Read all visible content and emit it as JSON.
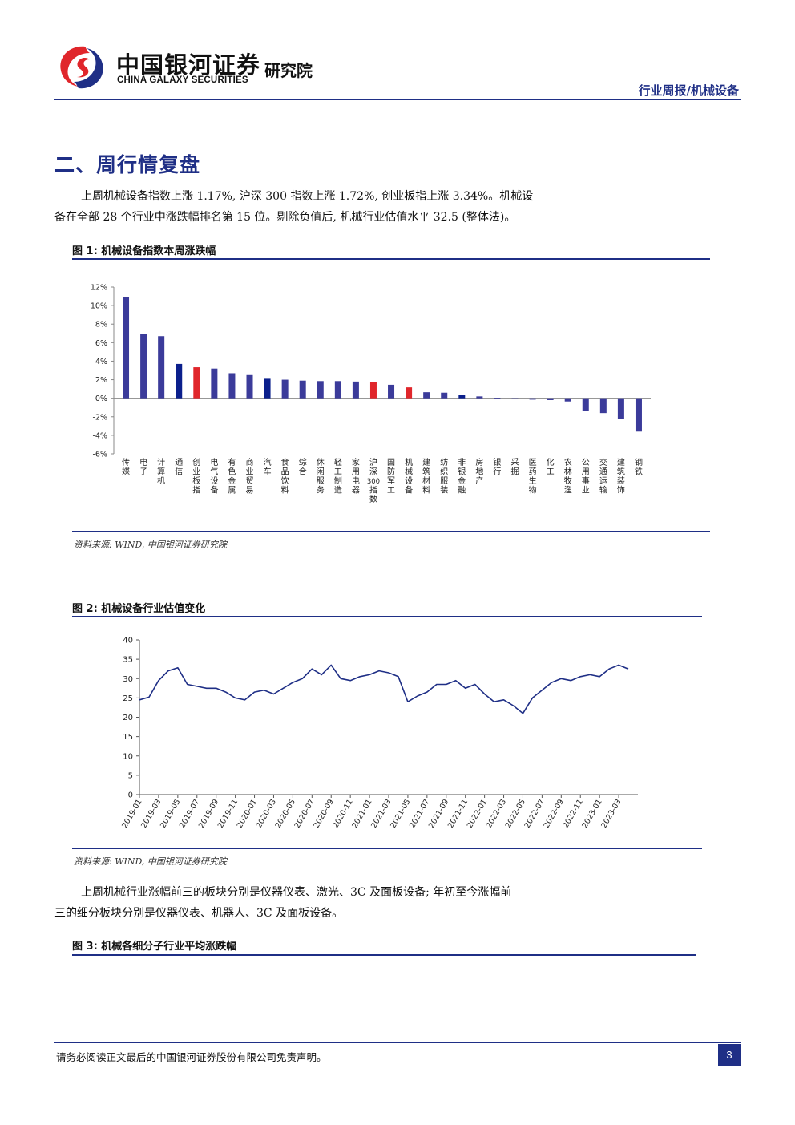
{
  "header": {
    "brand_cn": "中国银河证券",
    "brand_en": "CHINA GALAXY SECURITIES",
    "institute": "研究院",
    "report_type": "行业周报/机械设备"
  },
  "section": {
    "title": "二、周行情复盘",
    "para1_line1": "上周机械设备指数上涨 1.17%, 沪深 300 指数上涨 1.72%, 创业板指上涨 3.34%。机械设",
    "para1_line2": "备在全部 28 个行业中涨跌幅排名第 15 位。剔除负值后, 机械行业估值水平 32.5 (整体法)。",
    "para2_line1": "上周机械行业涨幅前三的板块分别是仪器仪表、激光、3C 及面板设备; 年初至今涨幅前",
    "para2_line2": "三的细分板块分别是仪器仪表、机器人、3C 及面板设备。"
  },
  "figures": {
    "fig1_title": "图 1: 机械设备指数本周涨跌幅",
    "fig1_source": "资料来源: WIND, 中国银河证券研究院",
    "fig2_title": "图 2: 机械设备行业估值变化",
    "fig2_source": "资料来源: WIND, 中国银河证券研究院",
    "fig3_title": "图 3: 机械各细分子行业平均涨跌幅"
  },
  "footer": {
    "disclaimer": "请务必阅读正文最后的中国银河证券股份有限公司免责声明。",
    "page": "3"
  },
  "colors": {
    "default_bar": "#3b3b9a",
    "highlight_navy": "#0b1f8c",
    "highlight_red": "#e0262b",
    "line": "#1f2f86"
  },
  "chart_data": [
    {
      "type": "bar",
      "categories": [
        "传媒",
        "电子",
        "计算机",
        "通信",
        "创业板指",
        "电气设备",
        "有色金属",
        "商业贸易",
        "汽车",
        "食品饮料",
        "综合",
        "休闲服务",
        "轻工制造",
        "家用电器",
        "沪深300指数",
        "国防军工",
        "机械设备",
        "建筑材料",
        "纺织服装",
        "非银金融",
        "房地产",
        "银行",
        "采掘",
        "医药生物",
        "化工",
        "农林牧渔",
        "公用事业",
        "交通运输",
        "建筑装饰",
        "钢铁"
      ],
      "values": [
        10.9,
        6.9,
        6.7,
        3.7,
        3.34,
        3.2,
        2.7,
        2.5,
        2.1,
        2.0,
        1.9,
        1.85,
        1.85,
        1.8,
        1.72,
        1.45,
        1.17,
        0.65,
        0.6,
        0.4,
        0.2,
        0.05,
        0.0,
        -0.15,
        -0.2,
        -0.35,
        -1.4,
        -1.6,
        -2.2,
        -3.6
      ],
      "bar_colors": [
        "#3b3b9a",
        "#3b3b9a",
        "#3b3b9a",
        "#0b1f8c",
        "#e0262b",
        "#3b3b9a",
        "#3b3b9a",
        "#3b3b9a",
        "#0b1f8c",
        "#3b3b9a",
        "#3b3b9a",
        "#3b3b9a",
        "#3b3b9a",
        "#3b3b9a",
        "#e0262b",
        "#3b3b9a",
        "#e0262b",
        "#3b3b9a",
        "#3b3b9a",
        "#0b1f8c",
        "#3b3b9a",
        "#3b3b9a",
        "#3b3b9a",
        "#3b3b9a",
        "#3b3b9a",
        "#3b3b9a",
        "#3b3b9a",
        "#3b3b9a",
        "#3b3b9a",
        "#3b3b9a"
      ],
      "ylim": [
        -6,
        12
      ],
      "yticks": [
        12,
        10,
        8,
        6,
        4,
        2,
        0,
        -2,
        -4,
        -6
      ],
      "ytick_labels": [
        "12%",
        "10%",
        "8%",
        "6%",
        "4%",
        "2%",
        "0%",
        "-2%",
        "-4%",
        "-6%"
      ],
      "grid": false
    },
    {
      "type": "line",
      "ylim": [
        0,
        40
      ],
      "yticks": [
        0,
        5,
        10,
        15,
        20,
        25,
        30,
        35,
        40
      ],
      "x_tick_labels": [
        "2019-01",
        "2019-03",
        "2019-05",
        "2019-07",
        "2019-09",
        "2019-11",
        "2020-01",
        "2020-03",
        "2020-05",
        "2020-07",
        "2020-09",
        "2020-11",
        "2021-01",
        "2021-03",
        "2021-05",
        "2021-07",
        "2021-09",
        "2021-11",
        "2022-01",
        "2022-03",
        "2022-05",
        "2022-07",
        "2022-09",
        "2022-11",
        "2023-01",
        "2023-03"
      ],
      "x_dates": [
        "2019-01",
        "2019-02",
        "2019-03",
        "2019-04",
        "2019-05",
        "2019-06",
        "2019-07",
        "2019-08",
        "2019-09",
        "2019-10",
        "2019-11",
        "2019-12",
        "2020-01",
        "2020-02",
        "2020-03",
        "2020-04",
        "2020-05",
        "2020-06",
        "2020-07",
        "2020-08",
        "2020-09",
        "2020-10",
        "2020-11",
        "2020-12",
        "2021-01",
        "2021-02",
        "2021-03",
        "2021-04",
        "2021-05",
        "2021-06",
        "2021-07",
        "2021-08",
        "2021-09",
        "2021-10",
        "2021-11",
        "2021-12",
        "2022-01",
        "2022-02",
        "2022-03",
        "2022-04",
        "2022-05",
        "2022-06",
        "2022-07",
        "2022-08",
        "2022-09",
        "2022-10",
        "2022-11",
        "2022-12",
        "2023-01",
        "2023-02",
        "2023-03",
        "2023-04"
      ],
      "values": [
        24.5,
        25.2,
        29.5,
        32.0,
        32.8,
        28.5,
        28.0,
        27.5,
        27.5,
        26.5,
        25.0,
        24.5,
        26.5,
        27.0,
        26.0,
        27.5,
        29.0,
        30.0,
        32.5,
        31.0,
        33.5,
        30.0,
        29.5,
        30.5,
        31.0,
        32.0,
        31.5,
        30.5,
        24.0,
        25.5,
        26.5,
        28.5,
        28.5,
        29.5,
        27.5,
        28.5,
        26.0,
        24.0,
        24.5,
        23.0,
        21.0,
        25.0,
        27.0,
        29.0,
        30.0,
        29.5,
        30.5,
        31.0,
        30.5,
        32.5,
        33.5,
        32.5
      ],
      "grid": false
    }
  ]
}
